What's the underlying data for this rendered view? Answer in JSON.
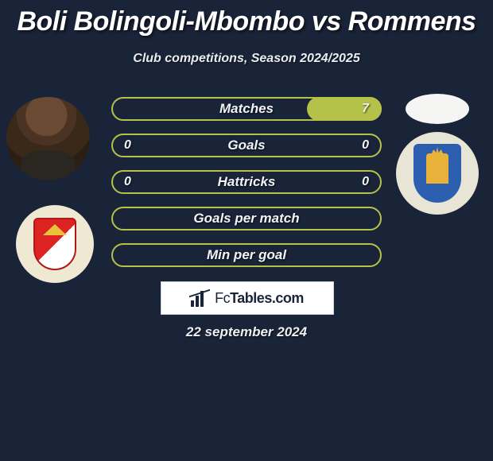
{
  "title": "Boli Bolingoli-Mbombo vs Rommens",
  "subtitle": "Club competitions, Season 2024/2025",
  "date": "22 september 2024",
  "brand": "FcTables.com",
  "colors": {
    "background": "#1a2438",
    "accent": "#b5c24a",
    "text": "#f0f4f8",
    "brand_box_bg": "#ffffff"
  },
  "stats": {
    "type": "comparison-bars",
    "bar_border_color": "#b5c24a",
    "bar_fill_color": "#b5c24a",
    "label_fontsize": 17,
    "rows": [
      {
        "label": "Matches",
        "left": "",
        "right": "7",
        "left_fill_pct": 0,
        "right_fill_pct": 28
      },
      {
        "label": "Goals",
        "left": "0",
        "right": "0",
        "left_fill_pct": 0,
        "right_fill_pct": 0
      },
      {
        "label": "Hattricks",
        "left": "0",
        "right": "0",
        "left_fill_pct": 0,
        "right_fill_pct": 0
      },
      {
        "label": "Goals per match",
        "left": "",
        "right": "",
        "left_fill_pct": 0,
        "right_fill_pct": 0
      },
      {
        "label": "Min per goal",
        "left": "",
        "right": "",
        "left_fill_pct": 0,
        "right_fill_pct": 0
      }
    ]
  }
}
